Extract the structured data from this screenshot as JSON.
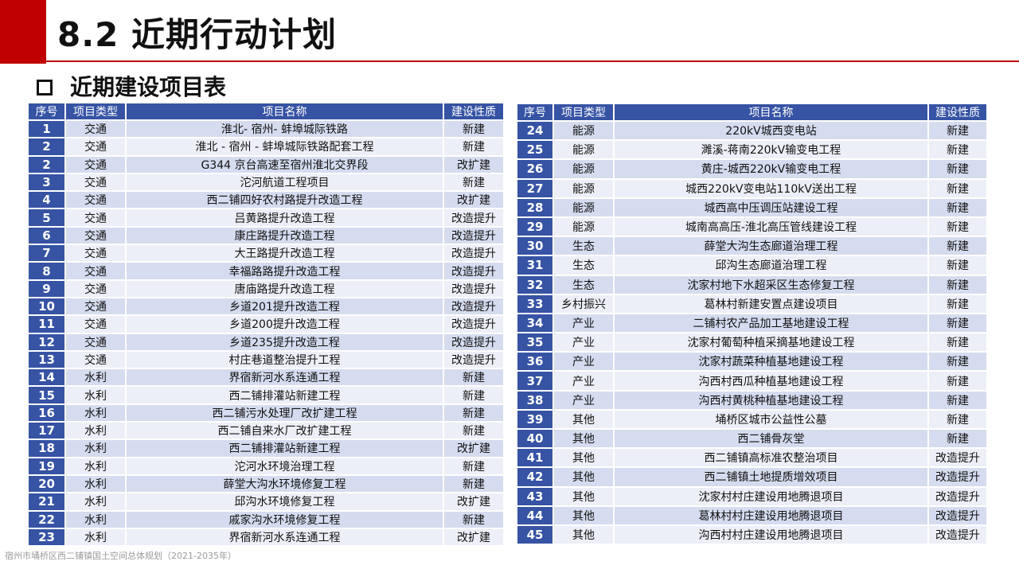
{
  "header": {
    "title": "8.2 近期行动计划",
    "subtitle": "近期建设项目表"
  },
  "table_headers": [
    "序号",
    "项目类型",
    "项目名称",
    "建设性质"
  ],
  "left_rows": [
    [
      "1",
      "交通",
      "淮北- 宿州- 蚌埠城际铁路",
      "新建"
    ],
    [
      "2",
      "交通",
      "淮北 - 宿州 - 蚌埠城际铁路配套工程",
      "新建"
    ],
    [
      "2",
      "交通",
      "G344 京台高速至宿州淮北交界段",
      "改扩建"
    ],
    [
      "3",
      "交通",
      "沱河航道工程项目",
      "新建"
    ],
    [
      "4",
      "交通",
      "西二铺四好农村路提升改造工程",
      "改扩建"
    ],
    [
      "5",
      "交通",
      "吕黄路提升改造工程",
      "改造提升"
    ],
    [
      "6",
      "交通",
      "康庄路提升改造工程",
      "改造提升"
    ],
    [
      "7",
      "交通",
      "大王路提升改造工程",
      "改造提升"
    ],
    [
      "8",
      "交通",
      "幸福路路提升改造工程",
      "改造提升"
    ],
    [
      "9",
      "交通",
      "唐庙路提升改造工程",
      "改造提升"
    ],
    [
      "10",
      "交通",
      "乡道201提升改造工程",
      "改造提升"
    ],
    [
      "11",
      "交通",
      "乡道200提升改造工程",
      "改造提升"
    ],
    [
      "12",
      "交通",
      "乡道235提升改造工程",
      "改造提升"
    ],
    [
      "13",
      "交通",
      "村庄巷道整治提升工程",
      "改造提升"
    ],
    [
      "14",
      "水利",
      "界宿新河水系连通工程",
      "新建"
    ],
    [
      "15",
      "水利",
      "西二铺排灌站新建工程",
      "新建"
    ],
    [
      "16",
      "水利",
      "西二铺污水处理厂改扩建工程",
      "新建"
    ],
    [
      "17",
      "水利",
      "西二铺自来水厂改扩建工程",
      "新建"
    ],
    [
      "18",
      "水利",
      "西二铺排灌站新建工程",
      "改扩建"
    ],
    [
      "19",
      "水利",
      "沱河水环境治理工程",
      "新建"
    ],
    [
      "20",
      "水利",
      "薛堂大沟水环境修复工程",
      "新建"
    ],
    [
      "21",
      "水利",
      "邱沟水环境修复工程",
      "改扩建"
    ],
    [
      "22",
      "水利",
      "戚家沟水环境修复工程",
      "新建"
    ],
    [
      "23",
      "水利",
      "界宿新河水系连通工程",
      "改扩建"
    ]
  ],
  "right_rows": [
    [
      "24",
      "能源",
      "220kV城西变电站",
      "新建"
    ],
    [
      "25",
      "能源",
      "濉溪-蒋南220kV输变电工程",
      "新建"
    ],
    [
      "26",
      "能源",
      "黄庄-城西220kV输变电工程",
      "新建"
    ],
    [
      "27",
      "能源",
      "城西220kV变电站110kV送出工程",
      "新建"
    ],
    [
      "28",
      "能源",
      "城西高中压调压站建设工程",
      "新建"
    ],
    [
      "29",
      "能源",
      "城南高高压-淮北高压管线建设工程",
      "新建"
    ],
    [
      "30",
      "生态",
      "薛堂大沟生态廊道治理工程",
      "新建"
    ],
    [
      "31",
      "生态",
      "邱沟生态廊道治理工程",
      "新建"
    ],
    [
      "32",
      "生态",
      "沈家村地下水超采区生态修复工程",
      "新建"
    ],
    [
      "33",
      "乡村振兴",
      "葛林村新建安置点建设项目",
      "新建"
    ],
    [
      "34",
      "产业",
      "二铺村农产品加工基地建设工程",
      "新建"
    ],
    [
      "35",
      "产业",
      "沈家村葡萄种植采摘基地建设工程",
      "新建"
    ],
    [
      "36",
      "产业",
      "沈家村蔬菜种植基地建设工程",
      "新建"
    ],
    [
      "37",
      "产业",
      "沟西村西瓜种植基地建设工程",
      "新建"
    ],
    [
      "38",
      "产业",
      "沟西村黄桃种植基地建设工程",
      "新建"
    ],
    [
      "39",
      "其他",
      "埇桥区城市公益性公墓",
      "新建"
    ],
    [
      "40",
      "其他",
      "西二铺骨灰堂",
      "新建"
    ],
    [
      "41",
      "其他",
      "西二铺镇高标准农整治项目",
      "改造提升"
    ],
    [
      "42",
      "其他",
      "西二铺镇土地提质增效项目",
      "改造提升"
    ],
    [
      "43",
      "其他",
      "沈家村村庄建设用地腾退项目",
      "改造提升"
    ],
    [
      "44",
      "其他",
      "葛林村村庄建设用地腾退项目",
      "改造提升"
    ],
    [
      "45",
      "其他",
      "沟西村村庄建设用地腾退项目",
      "改造提升"
    ]
  ],
  "footer": "宿州市埇桥区西二铺镇国土空间总体规划（2021-2035年）"
}
